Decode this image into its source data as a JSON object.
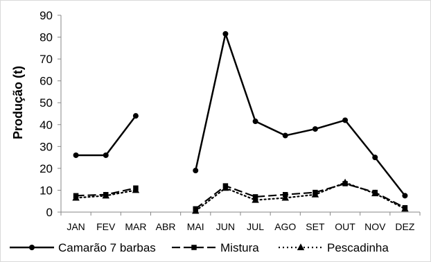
{
  "chart_data": {
    "type": "line",
    "title": "",
    "xlabel": "",
    "ylabel": "Produção (t)",
    "ylim": [
      0,
      90
    ],
    "yticks": [
      "0",
      "10",
      "20",
      "30",
      "40",
      "50",
      "60",
      "70",
      "80",
      "90"
    ],
    "categories": [
      "JAN",
      "FEV",
      "MAR",
      "ABR",
      "MAI",
      "JUN",
      "JUL",
      "AGO",
      "SET",
      "OUT",
      "NOV",
      "DEZ"
    ],
    "grid": false,
    "legend_position": "bottom",
    "series": [
      {
        "name": "Camarão 7 barbas",
        "values": [
          26,
          26,
          44,
          null,
          19,
          81.5,
          41.5,
          35,
          38,
          42,
          25,
          7.5
        ],
        "marker": "circle",
        "line_style": "solid",
        "color": "#000000"
      },
      {
        "name": "Mistura",
        "values": [
          7.5,
          8,
          11,
          null,
          1.5,
          12,
          7,
          8,
          9,
          13,
          9,
          2
        ],
        "marker": "square",
        "line_style": "dashed",
        "color": "#000000"
      },
      {
        "name": "Pescadinha",
        "values": [
          6.5,
          7.5,
          10,
          null,
          0.5,
          11,
          5.5,
          6.5,
          8,
          13.5,
          8.5,
          1.5
        ],
        "marker": "triangle",
        "line_style": "dotted",
        "color": "#000000"
      }
    ]
  }
}
